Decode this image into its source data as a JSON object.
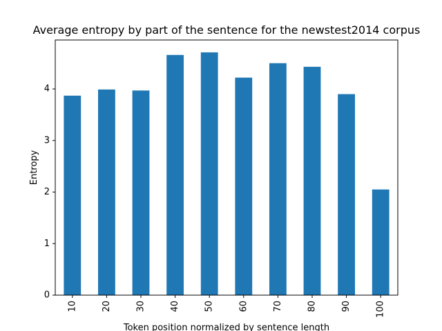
{
  "chart_data": {
    "type": "bar",
    "title": "Average entropy by part of the sentence for the newstest2014 corpus",
    "xlabel": "Token position normalized by sentence length",
    "ylabel": "Entropy",
    "categories": [
      "10",
      "20",
      "30",
      "40",
      "50",
      "60",
      "70",
      "80",
      "90",
      "100"
    ],
    "values": [
      3.87,
      3.99,
      3.97,
      4.66,
      4.71,
      4.22,
      4.5,
      4.43,
      3.9,
      2.05
    ],
    "ylim": [
      0,
      4.95
    ],
    "yticks": [
      "0",
      "1",
      "2",
      "3",
      "4"
    ],
    "bar_color": "#1f77b4",
    "grid": false,
    "legend": "none"
  }
}
